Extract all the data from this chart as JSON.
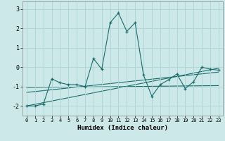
{
  "xlabel": "Humidex (Indice chaleur)",
  "background_color": "#cce8e8",
  "line_color": "#1a6b6b",
  "grid_color": "#aad4d4",
  "xlim": [
    -0.5,
    23.5
  ],
  "ylim": [
    -2.5,
    3.4
  ],
  "yticks": [
    -2,
    -1,
    0,
    1,
    2,
    3
  ],
  "xticks": [
    0,
    1,
    2,
    3,
    4,
    5,
    6,
    7,
    8,
    9,
    10,
    11,
    12,
    13,
    14,
    15,
    16,
    17,
    18,
    19,
    20,
    21,
    22,
    23
  ],
  "main_x": [
    0,
    1,
    2,
    3,
    4,
    5,
    6,
    7,
    8,
    9,
    10,
    11,
    12,
    13,
    14,
    15,
    16,
    17,
    18,
    19,
    20,
    21,
    22,
    23
  ],
  "main_y": [
    -2.0,
    -2.0,
    -1.9,
    -0.6,
    -0.8,
    -0.9,
    -0.9,
    -1.0,
    0.45,
    -0.1,
    2.3,
    2.8,
    1.85,
    2.3,
    -0.4,
    -1.5,
    -0.9,
    -0.65,
    -0.35,
    -1.1,
    -0.75,
    0.0,
    -0.1,
    -0.15
  ],
  "trend1_x": [
    0,
    23
  ],
  "trend1_y": [
    -2.0,
    -0.05
  ],
  "trend2_x": [
    0,
    23
  ],
  "trend2_y": [
    -1.05,
    -0.95
  ],
  "trend3_x": [
    0,
    23
  ],
  "trend3_y": [
    -1.3,
    -0.25
  ],
  "xlabel_fontsize": 6.5,
  "ytick_fontsize": 6.0,
  "xtick_fontsize": 5.0
}
